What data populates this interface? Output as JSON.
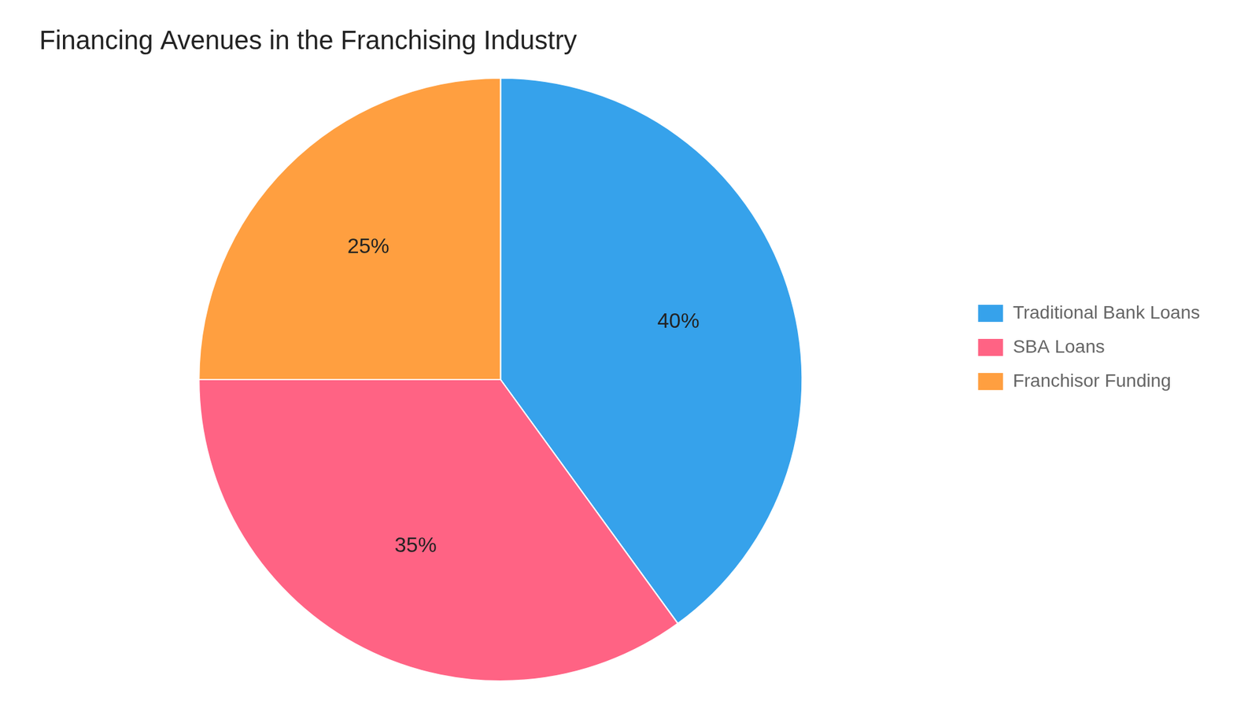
{
  "chart_data": {
    "type": "pie",
    "title": "Financing Avenues in the Franchising Industry",
    "categories": [
      "Traditional Bank Loans",
      "SBA Loans",
      "Franchisor Funding"
    ],
    "values": [
      40,
      35,
      25
    ],
    "value_labels": [
      "40%",
      "35%",
      "25%"
    ],
    "data_labels": true,
    "legend": "right"
  }
}
